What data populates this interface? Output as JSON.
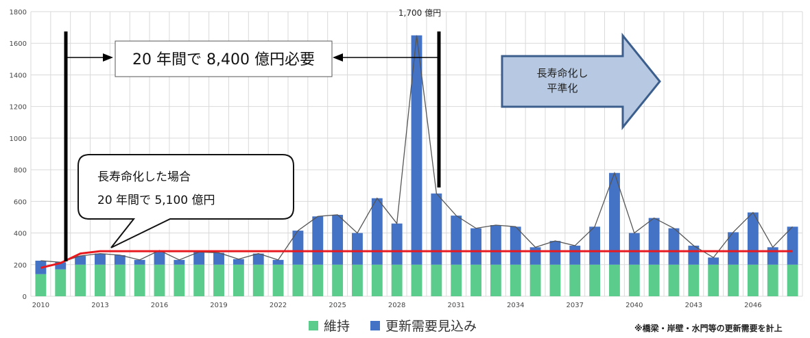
{
  "chart_data": {
    "type": "bar",
    "stacked": true,
    "x": [
      2010,
      2011,
      2012,
      2013,
      2014,
      2015,
      2016,
      2017,
      2018,
      2019,
      2020,
      2021,
      2022,
      2023,
      2024,
      2025,
      2026,
      2027,
      2028,
      2029,
      2030,
      2031,
      2032,
      2033,
      2034,
      2035,
      2036,
      2037,
      2038,
      2039,
      2040,
      2041,
      2042,
      2043,
      2044,
      2045,
      2046,
      2047,
      2048
    ],
    "xticks": [
      "2010",
      "2013",
      "2016",
      "2019",
      "2022",
      "2025",
      "2028",
      "2031",
      "2034",
      "2037",
      "2040",
      "2043",
      "2046"
    ],
    "ylim": [
      0,
      1800
    ],
    "yticks": [
      0,
      200,
      400,
      600,
      800,
      1000,
      1200,
      1400,
      1600,
      1800
    ],
    "grid": true,
    "series": [
      {
        "name": "維持",
        "color": "#5ccc8c",
        "values": [
          140,
          170,
          200,
          200,
          200,
          200,
          200,
          200,
          200,
          200,
          200,
          200,
          200,
          200,
          200,
          200,
          200,
          200,
          200,
          200,
          200,
          200,
          200,
          200,
          200,
          200,
          200,
          200,
          200,
          200,
          200,
          200,
          200,
          200,
          200,
          200,
          200,
          200,
          200
        ]
      },
      {
        "name": "更新需要見込み",
        "color": "#4472c4",
        "values": [
          85,
          45,
          55,
          70,
          60,
          30,
          90,
          30,
          80,
          75,
          35,
          70,
          30,
          215,
          305,
          315,
          200,
          420,
          260,
          1450,
          450,
          310,
          230,
          250,
          240,
          110,
          150,
          120,
          240,
          580,
          200,
          295,
          230,
          120,
          45,
          205,
          330,
          110,
          240
        ]
      }
    ],
    "smoothed_line": {
      "color": "#e8191f",
      "values": [
        180,
        210,
        270,
        285,
        285,
        285,
        285,
        285,
        285,
        285,
        285,
        285,
        285,
        285,
        285,
        285,
        285,
        285,
        285,
        285,
        285,
        285,
        285,
        285,
        285,
        285,
        285,
        285,
        285,
        285,
        285,
        285,
        285,
        285,
        285,
        285,
        285,
        285,
        285
      ]
    },
    "annotations": {
      "peak_label": "1,700 億円",
      "span_label": "20 年間で 8,400 億円必要",
      "callout_line1": "長寿命化した場合",
      "callout_line2": "20 年間で 5,100 億円",
      "arrow_line1": "長寿命化し",
      "arrow_line2": "平準化"
    }
  },
  "footnote": "※橋梁・岸壁・水門等の更新需要を計上"
}
